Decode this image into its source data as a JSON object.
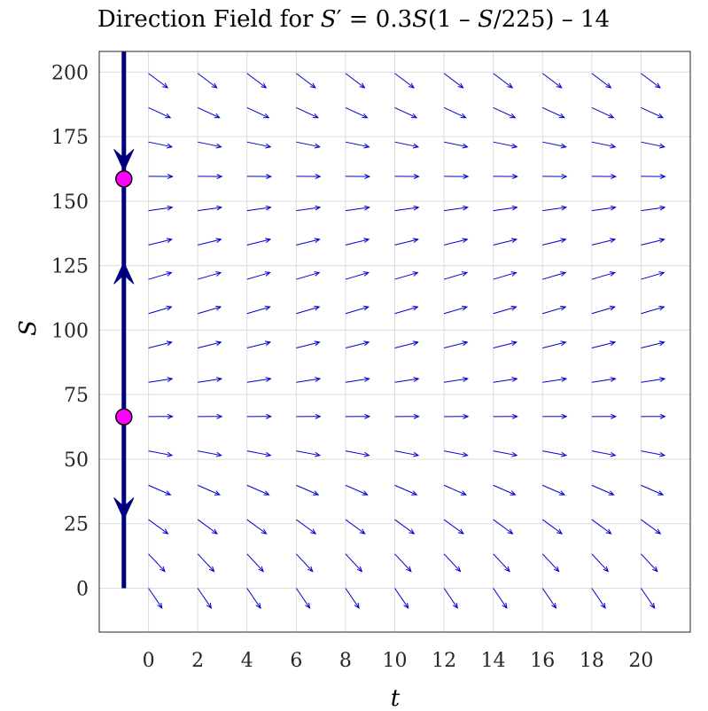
{
  "chart_data": {
    "type": "direction-field",
    "title": {
      "prefix": "Direction Field for ",
      "s1": "S",
      "prime": "′",
      "eq": " = 0.3",
      "s2": "S",
      "paren_open": "(1 – ",
      "s3": "S",
      "rest": "/225) – 14"
    },
    "xlabel": "t",
    "ylabel": "S",
    "xlim": [
      -2,
      22
    ],
    "ylim": [
      -17,
      208
    ],
    "xticks": [
      0,
      2,
      4,
      6,
      8,
      10,
      12,
      14,
      16,
      18,
      20
    ],
    "yticks": [
      0,
      25,
      50,
      75,
      100,
      125,
      150,
      175,
      200
    ],
    "grid": true,
    "equation": {
      "r": 0.3,
      "K": 225,
      "h": 14
    },
    "field_t": [
      0,
      2,
      4,
      6,
      8,
      10,
      12,
      14,
      16,
      18,
      20
    ],
    "field_S": [
      0,
      13.3,
      26.6,
      39.9,
      53.2,
      66.5,
      79.8,
      93.1,
      106.4,
      119.7,
      133,
      146.3,
      159.6,
      172.9,
      186.2,
      199.5
    ],
    "phase_line": {
      "t": -1,
      "equilibria": [
        66.4,
        158.6
      ],
      "arrows": [
        {
          "S": 170,
          "direction": "down"
        },
        {
          "S": 118,
          "direction": "up"
        },
        {
          "S": 35,
          "direction": "down"
        }
      ],
      "range": [
        0,
        208
      ]
    },
    "colors": {
      "field": "#0000cc",
      "phase_line": "#00007f",
      "equilibrium_fill": "#ff00ff",
      "equilibrium_edge": "#000000"
    }
  }
}
